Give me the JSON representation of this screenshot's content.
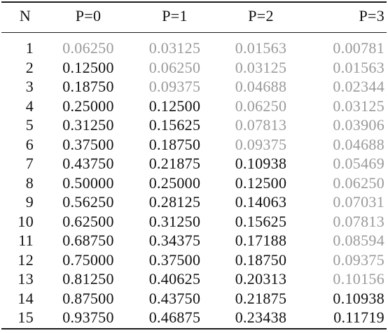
{
  "table": {
    "headers": [
      "N",
      "P=0",
      "P=1",
      "P=2",
      "P=3"
    ],
    "rows": [
      {
        "n": "1",
        "values": [
          "0.06250",
          "0.03125",
          "0.01563",
          "0.00781"
        ],
        "dim": [
          true,
          true,
          true,
          true
        ]
      },
      {
        "n": "2",
        "values": [
          "0.12500",
          "0.06250",
          "0.03125",
          "0.01563"
        ],
        "dim": [
          false,
          true,
          true,
          true
        ]
      },
      {
        "n": "3",
        "values": [
          "0.18750",
          "0.09375",
          "0.04688",
          "0.02344"
        ],
        "dim": [
          false,
          true,
          true,
          true
        ]
      },
      {
        "n": "4",
        "values": [
          "0.25000",
          "0.12500",
          "0.06250",
          "0.03125"
        ],
        "dim": [
          false,
          false,
          true,
          true
        ]
      },
      {
        "n": "5",
        "values": [
          "0.31250",
          "0.15625",
          "0.07813",
          "0.03906"
        ],
        "dim": [
          false,
          false,
          true,
          true
        ]
      },
      {
        "n": "6",
        "values": [
          "0.37500",
          "0.18750",
          "0.09375",
          "0.04688"
        ],
        "dim": [
          false,
          false,
          true,
          true
        ]
      },
      {
        "n": "7",
        "values": [
          "0.43750",
          "0.21875",
          "0.10938",
          "0.05469"
        ],
        "dim": [
          false,
          false,
          false,
          true
        ]
      },
      {
        "n": "8",
        "values": [
          "0.50000",
          "0.25000",
          "0.12500",
          "0.06250"
        ],
        "dim": [
          false,
          false,
          false,
          true
        ]
      },
      {
        "n": "9",
        "values": [
          "0.56250",
          "0.28125",
          "0.14063",
          "0.07031"
        ],
        "dim": [
          false,
          false,
          false,
          true
        ]
      },
      {
        "n": "10",
        "values": [
          "0.62500",
          "0.31250",
          "0.15625",
          "0.07813"
        ],
        "dim": [
          false,
          false,
          false,
          true
        ]
      },
      {
        "n": "11",
        "values": [
          "0.68750",
          "0.34375",
          "0.17188",
          "0.08594"
        ],
        "dim": [
          false,
          false,
          false,
          true
        ]
      },
      {
        "n": "12",
        "values": [
          "0.75000",
          "0.37500",
          "0.18750",
          "0.09375"
        ],
        "dim": [
          false,
          false,
          false,
          true
        ]
      },
      {
        "n": "13",
        "values": [
          "0.81250",
          "0.40625",
          "0.20313",
          "0.10156"
        ],
        "dim": [
          false,
          false,
          false,
          true
        ]
      },
      {
        "n": "14",
        "values": [
          "0.87500",
          "0.43750",
          "0.21875",
          "0.10938"
        ],
        "dim": [
          false,
          false,
          false,
          false
        ]
      },
      {
        "n": "15",
        "values": [
          "0.93750",
          "0.46875",
          "0.23438",
          "0.11719"
        ],
        "dim": [
          false,
          false,
          false,
          false
        ]
      }
    ]
  },
  "colors": {
    "text": "#111111",
    "dimmed_text": "#9a9a9a",
    "rule": "#1a1a1a"
  }
}
